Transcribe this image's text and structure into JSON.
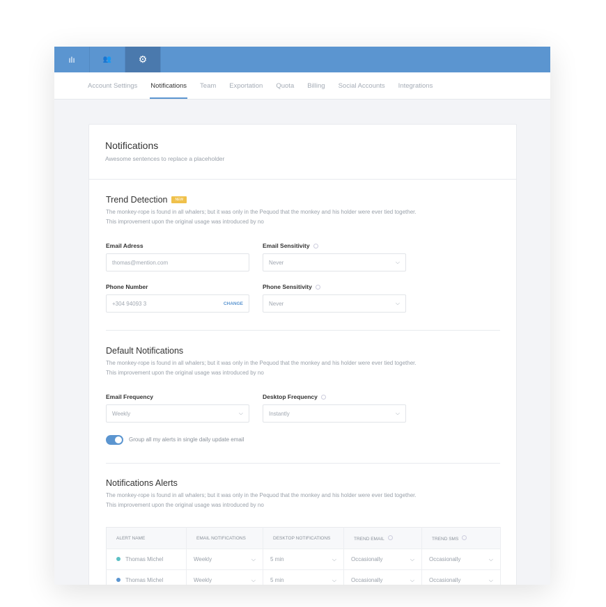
{
  "topbar": {
    "tabs": [
      {
        "icon": "bar-chart-icon",
        "glyph": "ılı"
      },
      {
        "icon": "users-icon",
        "glyph": "👥"
      },
      {
        "icon": "gear-icon",
        "glyph": "⚙"
      }
    ]
  },
  "subnav": [
    "Account Settings",
    "Notifications",
    "Team",
    "Exportation",
    "Quota",
    "Billing",
    "Social Accounts",
    "Integrations"
  ],
  "header": {
    "title": "Notifications",
    "subtitle": "Awesome sentences to replace a placeholder"
  },
  "trend": {
    "title": "Trend Detection",
    "badge": "NEW",
    "desc1": "The monkey-rope is found in all whalers; but it was only in the Pequod that the monkey and his holder were ever tied together.",
    "desc2": "This improvement upon the original usage was introduced by no",
    "email_label": "Email Adress",
    "email_placeholder": "thomas@mention.com",
    "email_sens_label": "Email Sensitivity",
    "email_sens_value": "Never",
    "phone_label": "Phone Number",
    "phone_value": "+304 94093 3",
    "change": "CHANGE",
    "phone_sens_label": "Phone Sensitivity",
    "phone_sens_value": "Never"
  },
  "defaults": {
    "title": "Default Notifications",
    "desc1": "The monkey-rope is found in all whalers; but it was only in the Pequod that the monkey and his holder were ever tied together.",
    "desc2": "This improvement upon the original usage was introduced by no",
    "email_freq_label": "Email Frequency",
    "email_freq_value": "Weekly",
    "desktop_freq_label": "Desktop Frequency",
    "desktop_freq_value": "Instantly",
    "toggle_label": "Group all my alerts in single daily update email",
    "toggle_on": true
  },
  "alerts": {
    "title": "Notifications Alerts",
    "desc1": "The monkey-rope is found in all whalers; but it was only in the Pequod that the monkey and his holder were ever tied together.",
    "desc2": "This improvement upon the original usage was introduced by no",
    "columns": [
      "ALERT NAME",
      "EMAIL NOTIFICATIONS",
      "DESKTOP NOTIFICATIONS",
      "TREND EMAIL",
      "TREND SMS"
    ],
    "rows": [
      {
        "name": "Thomas Michel",
        "color": "#5bc0c4",
        "email": "Weekly",
        "desktop": "5 min",
        "trend_email": "Occasionally",
        "trend_sms": "Occasionally"
      },
      {
        "name": "Thomas Michel",
        "color": "#5b95d0",
        "email": "Weekly",
        "desktop": "5 min",
        "trend_email": "Occasionally",
        "trend_sms": "Occasionally"
      }
    ]
  }
}
